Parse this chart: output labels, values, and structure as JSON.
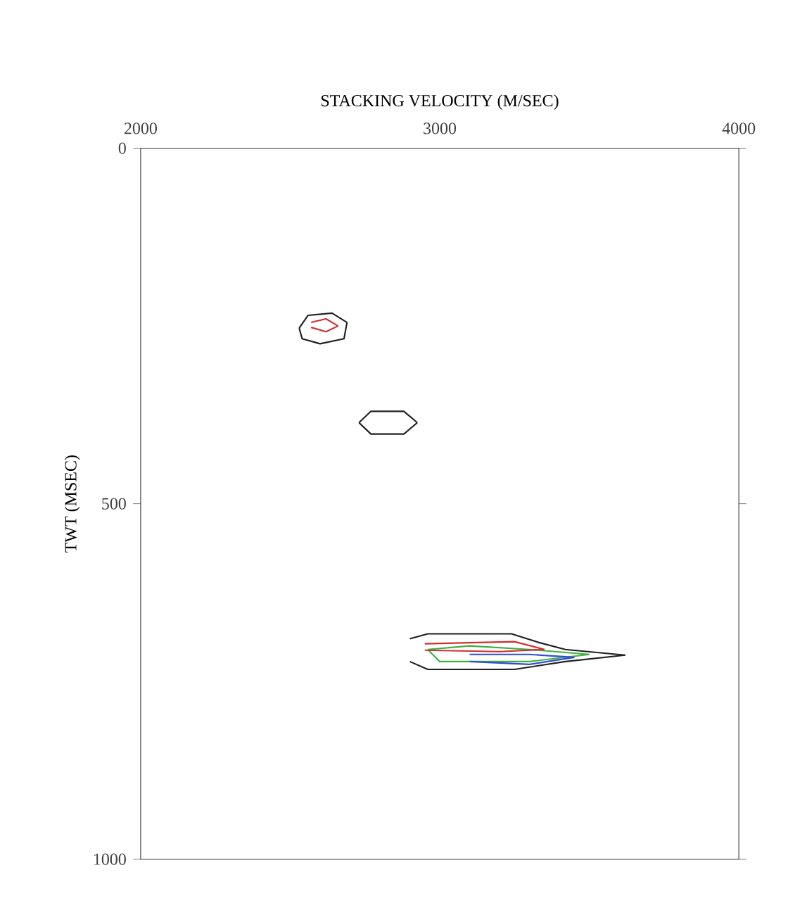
{
  "chart_data": {
    "type": "line",
    "xlabel": "STACKING VELOCITY (M/SEC)",
    "ylabel": "TWT (MSEC)",
    "xlim": [
      2000,
      4000
    ],
    "xticks": [
      2000,
      3000,
      4000
    ],
    "ylim": [
      1000,
      0
    ],
    "yticks": [
      0,
      500,
      1000
    ],
    "grid": false,
    "marker": "none",
    "line_style": "solid",
    "series": [
      {
        "color": "#202020",
        "x": [
          2530,
          2560,
          2640,
          2690
        ],
        "values": [
          253,
          235,
          232,
          245
        ]
      },
      {
        "color": "#202020",
        "x": [
          2530,
          2540,
          2600,
          2680,
          2690
        ],
        "values": [
          253,
          268,
          275,
          268,
          245
        ]
      },
      {
        "color": "#d03030",
        "x": [
          2570,
          2620,
          2660
        ],
        "values": [
          245,
          240,
          250
        ]
      },
      {
        "color": "#d03030",
        "x": [
          2570,
          2620,
          2660
        ],
        "values": [
          252,
          258,
          250
        ]
      },
      {
        "color": "#202020",
        "x": [
          2730,
          2770,
          2880,
          2925
        ],
        "values": [
          386,
          370,
          370,
          386
        ]
      },
      {
        "color": "#202020",
        "x": [
          2730,
          2770,
          2880,
          2925
        ],
        "values": [
          386,
          402,
          402,
          386
        ]
      },
      {
        "color": "#202020",
        "x": [
          2900,
          2960,
          3240,
          3330,
          3420,
          3620
        ],
        "values": [
          690,
          683,
          683,
          695,
          705,
          713
        ]
      },
      {
        "color": "#202020",
        "x": [
          2900,
          2960,
          3250,
          3420,
          3620
        ],
        "values": [
          722,
          733,
          733,
          722,
          713
        ]
      },
      {
        "color": "#40b040",
        "x": [
          2960,
          3100,
          3300,
          3500
        ],
        "values": [
          705,
          700,
          705,
          712
        ]
      },
      {
        "color": "#40b040",
        "x": [
          2960,
          3000,
          3300,
          3500
        ],
        "values": [
          705,
          722,
          722,
          712
        ]
      },
      {
        "color": "#3050d0",
        "x": [
          3100,
          3300,
          3450
        ],
        "values": [
          712,
          712,
          716
        ]
      },
      {
        "color": "#3050d0",
        "x": [
          3100,
          3300,
          3450
        ],
        "values": [
          722,
          726,
          716
        ]
      },
      {
        "color": "#d03030",
        "x": [
          2950,
          3250,
          3350
        ],
        "values": [
          697,
          694,
          705
        ]
      },
      {
        "color": "#d03030",
        "x": [
          2950,
          3200,
          3350
        ],
        "values": [
          706,
          708,
          705
        ]
      }
    ]
  }
}
